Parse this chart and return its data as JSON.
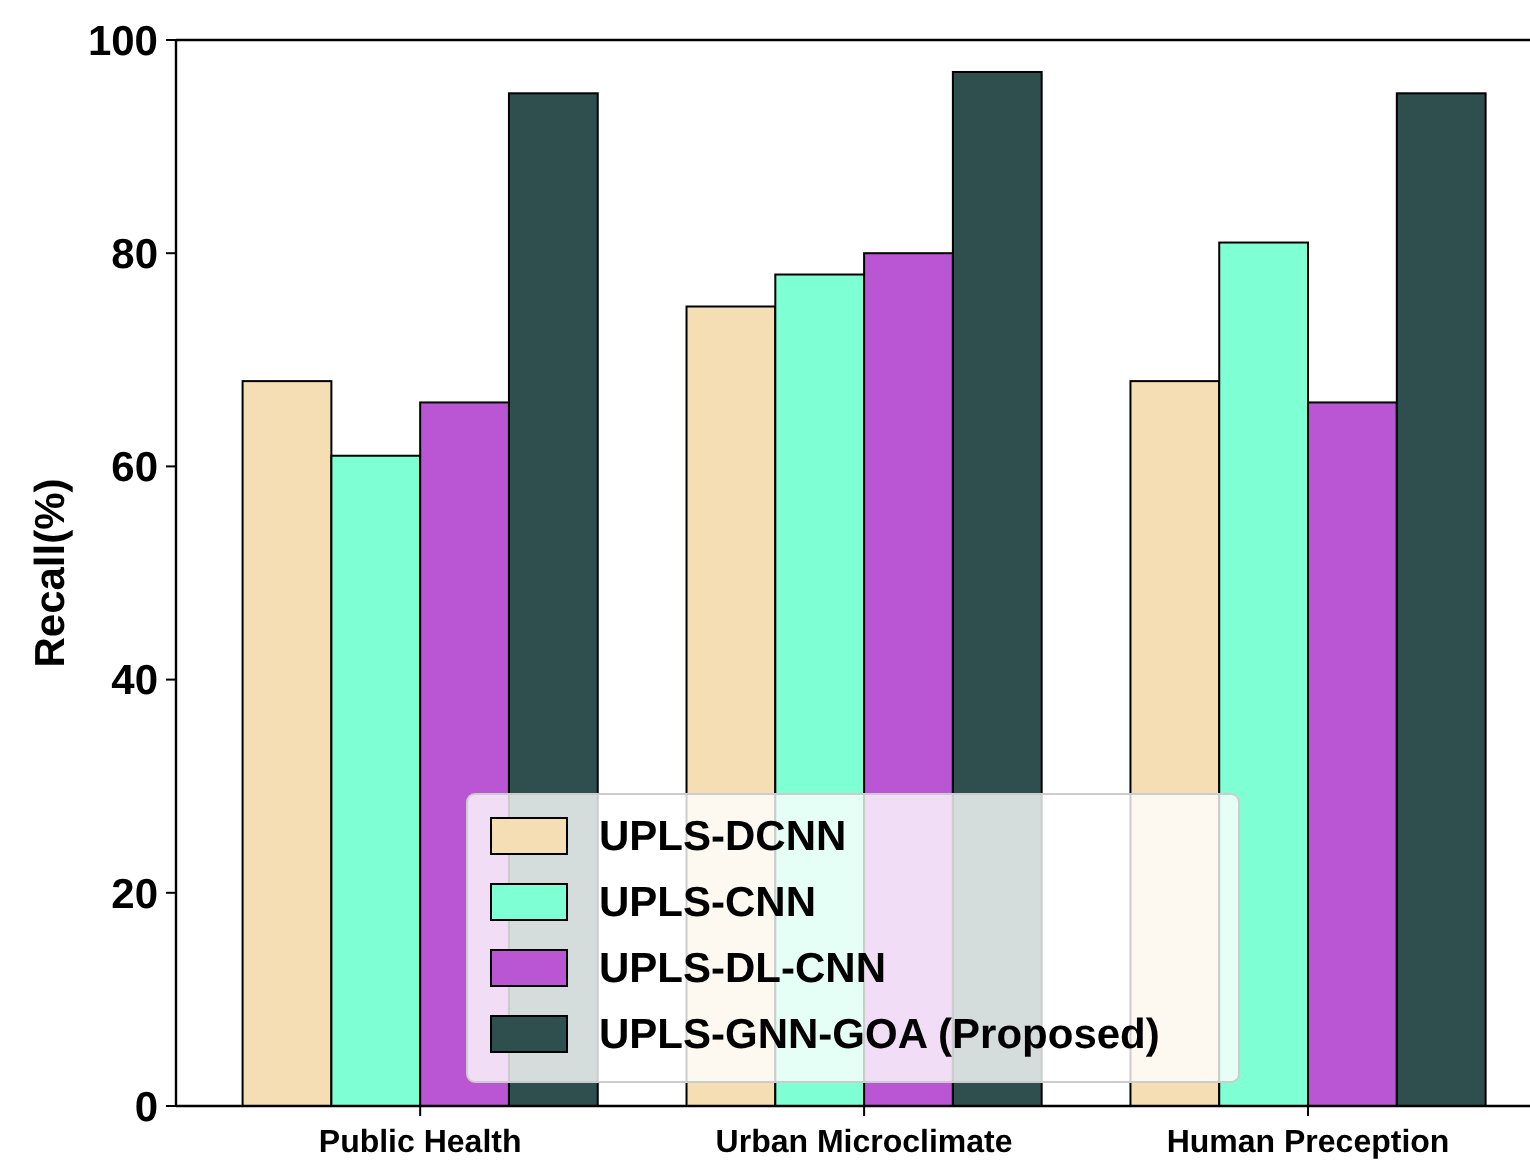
{
  "chart_data": {
    "type": "bar",
    "ylabel": "Recall(%)",
    "categories": [
      "Public Health",
      "Urban Microclimate",
      "Human Preception"
    ],
    "series": [
      {
        "name": "UPLS-DCNN",
        "color": "#f5deb3",
        "values": [
          68,
          75,
          68
        ]
      },
      {
        "name": "UPLS-CNN",
        "color": "#7fffd4",
        "values": [
          61,
          78,
          81
        ]
      },
      {
        "name": "UPLS-DL-CNN",
        "color": "#ba55d3",
        "values": [
          66,
          80,
          66
        ]
      },
      {
        "name": "UPLS-GNN-GOA (Proposed)",
        "color": "#2f4f4f",
        "values": [
          95,
          97,
          95
        ]
      }
    ],
    "ylim": [
      0,
      100
    ],
    "yticks": [
      0,
      20,
      40,
      60,
      80,
      100
    ],
    "legend": "bottom"
  }
}
